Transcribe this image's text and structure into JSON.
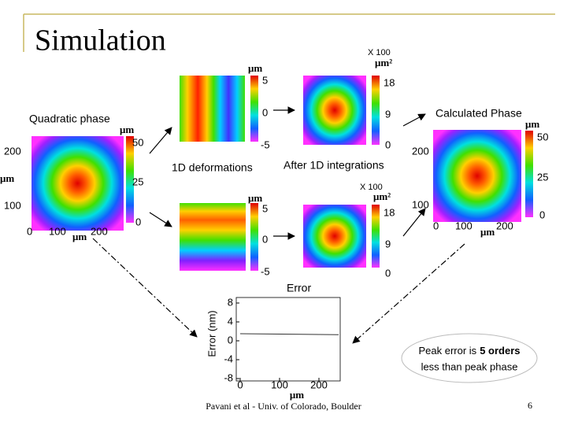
{
  "title": "Simulation",
  "quadratic_phase": {
    "label": "Quadratic phase",
    "colorbar_unit": "μm",
    "colorbar_ticks": [
      50,
      25,
      0
    ],
    "y_ticks": [
      200,
      100
    ],
    "x_ticks": [
      0,
      100,
      200
    ],
    "y_unit": "μm",
    "x_unit": "μm"
  },
  "deformation_label": "1D deformations",
  "deformation_top": {
    "colorbar_unit": "μm",
    "colorbar_ticks": [
      5,
      0,
      -5
    ]
  },
  "deformation_bottom": {
    "colorbar_unit": "μm",
    "colorbar_ticks": [
      5,
      0,
      -5
    ]
  },
  "integration_label": "After 1D integrations",
  "integration_top": {
    "scale": "X 100",
    "colorbar_unit": "μm²",
    "colorbar_ticks": [
      18,
      9,
      0
    ]
  },
  "integration_bottom": {
    "scale": "X 100",
    "colorbar_unit": "μm²",
    "colorbar_ticks": [
      18,
      9,
      0
    ]
  },
  "calculated_phase": {
    "label": "Calculated Phase",
    "colorbar_unit": "μm",
    "colorbar_ticks": [
      50,
      25,
      0
    ],
    "y_ticks": [
      200,
      100
    ],
    "x_ticks": [
      0,
      100,
      200
    ],
    "x_unit": "μm"
  },
  "error_plot": {
    "title": "Error",
    "y_label": "Error (nm)",
    "x_unit": "μm",
    "yticks": [
      8,
      4,
      0,
      -4,
      -8
    ],
    "xticks": [
      0,
      100,
      200
    ],
    "x": [
      0,
      250
    ],
    "values": [
      1.5,
      1.3
    ]
  },
  "callout": {
    "parts": [
      "Peak error is",
      "5 orders",
      "less than peak phase"
    ]
  },
  "footer": "Pavani et al - Univ. of Colorado, Boulder",
  "page_number": "6"
}
